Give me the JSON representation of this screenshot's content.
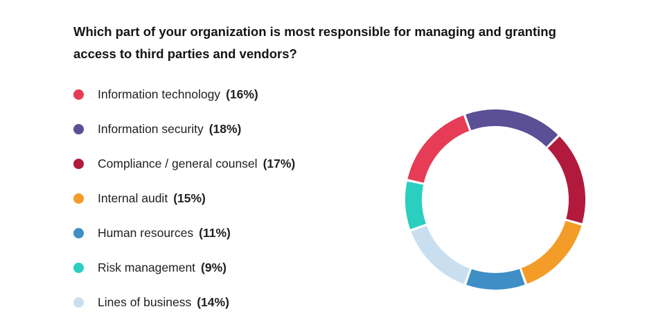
{
  "chart_data": {
    "type": "pie",
    "variant": "donut",
    "title": "Which part of your organization is most responsible for managing and granting access to third parties and vendors?",
    "categories": [
      "Information technology",
      "Information security",
      "Compliance / general counsel",
      "Internal audit",
      "Human resources",
      "Risk management",
      "Lines of business"
    ],
    "values": [
      16,
      18,
      17,
      15,
      11,
      9,
      14
    ],
    "value_labels": [
      "(16%)",
      "(18%)",
      "(17%)",
      "(15%)",
      "(11%)",
      "(9%)",
      "(14%)"
    ],
    "unit": "%",
    "colors": [
      "#e63c55",
      "#5b4f95",
      "#b11a3c",
      "#f39c27",
      "#3f8ec6",
      "#2bcfc0",
      "#c9dff0"
    ],
    "legend_position": "left",
    "slice_order_clockwise_from_top": [
      "Information security",
      "Compliance / general counsel",
      "Internal audit",
      "Human resources",
      "Lines of business",
      "Risk management",
      "Information technology"
    ]
  }
}
